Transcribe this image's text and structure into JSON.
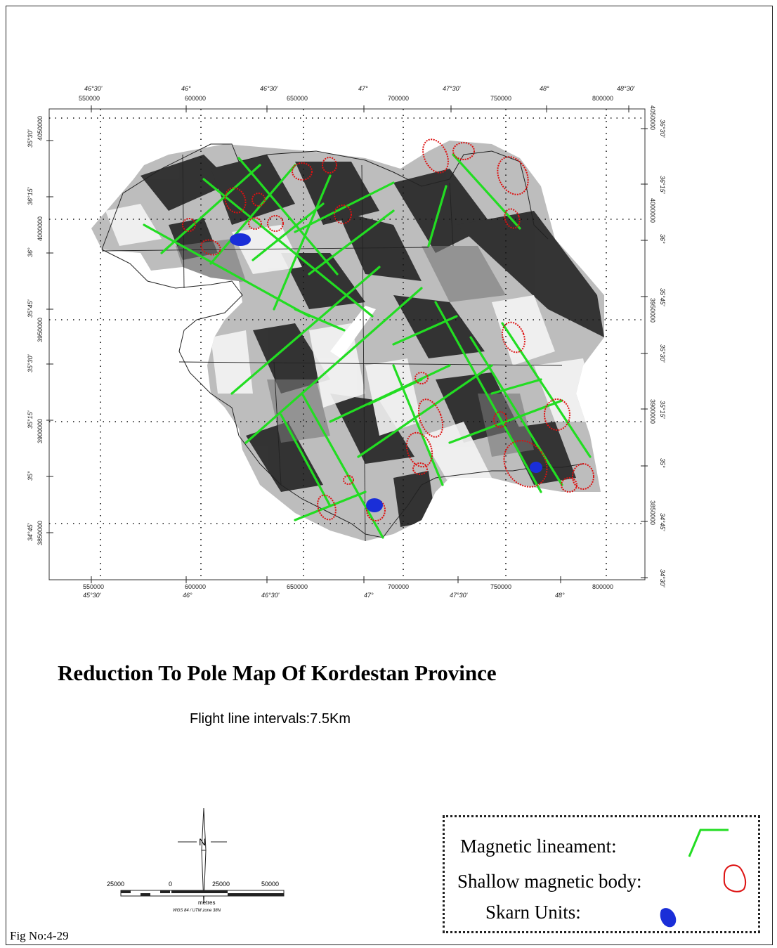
{
  "title": "Reduction To Pole Map Of Kordestan Province",
  "subtitle": "Flight line intervals:7.5Km",
  "figure_number": "Fig No:4-29",
  "axes": {
    "top_lon": [
      "46°30'",
      "46°",
      "46°30'",
      "47°",
      "47°30'",
      "48°",
      "48°30'"
    ],
    "top_utm": [
      "550000",
      "600000",
      "650000",
      "700000",
      "750000",
      "800000"
    ],
    "bottom_utm": [
      "550000",
      "600000",
      "650000",
      "700000",
      "750000",
      "800000"
    ],
    "bottom_lon": [
      "45°30'",
      "46°",
      "46°30'",
      "47°",
      "47°30'",
      "48°"
    ],
    "left_lat": [
      "35°30'",
      "36°15'",
      "36°",
      "35°45'",
      "35°30'",
      "35°15'",
      "35°",
      "34°45'"
    ],
    "left_utm": [
      "4050000",
      "4000000",
      "3950000",
      "3900000",
      "3850000"
    ],
    "right_lat": [
      "36°30'",
      "36°15'",
      "36°",
      "35°45'",
      "35°30'",
      "35°15'",
      "35°",
      "34°45'",
      "34°30'"
    ],
    "right_utm": [
      "4050000",
      "4000000",
      "3950000",
      "3900000",
      "3850000"
    ]
  },
  "scale_bar": {
    "labels": [
      "25000",
      "0",
      "25000",
      "50000"
    ],
    "unit": "metres",
    "projection": "WGS 84 / UTM zone 38N"
  },
  "north_arrow": {
    "letter": "N"
  },
  "legend": {
    "items": [
      {
        "label": "Magnetic lineament:",
        "symbol": "green-line-icon",
        "color": "#22dd22"
      },
      {
        "label": "Shallow magnetic body:",
        "symbol": "red-outline-icon",
        "color": "#dd1111"
      },
      {
        "label": "Skarn Units:",
        "symbol": "blue-blob-icon",
        "color": "#1a2ed8"
      }
    ]
  },
  "colors": {
    "lineament": "#22dd22",
    "shallow_body": "#dd1111",
    "skarn": "#1a2ed8"
  }
}
